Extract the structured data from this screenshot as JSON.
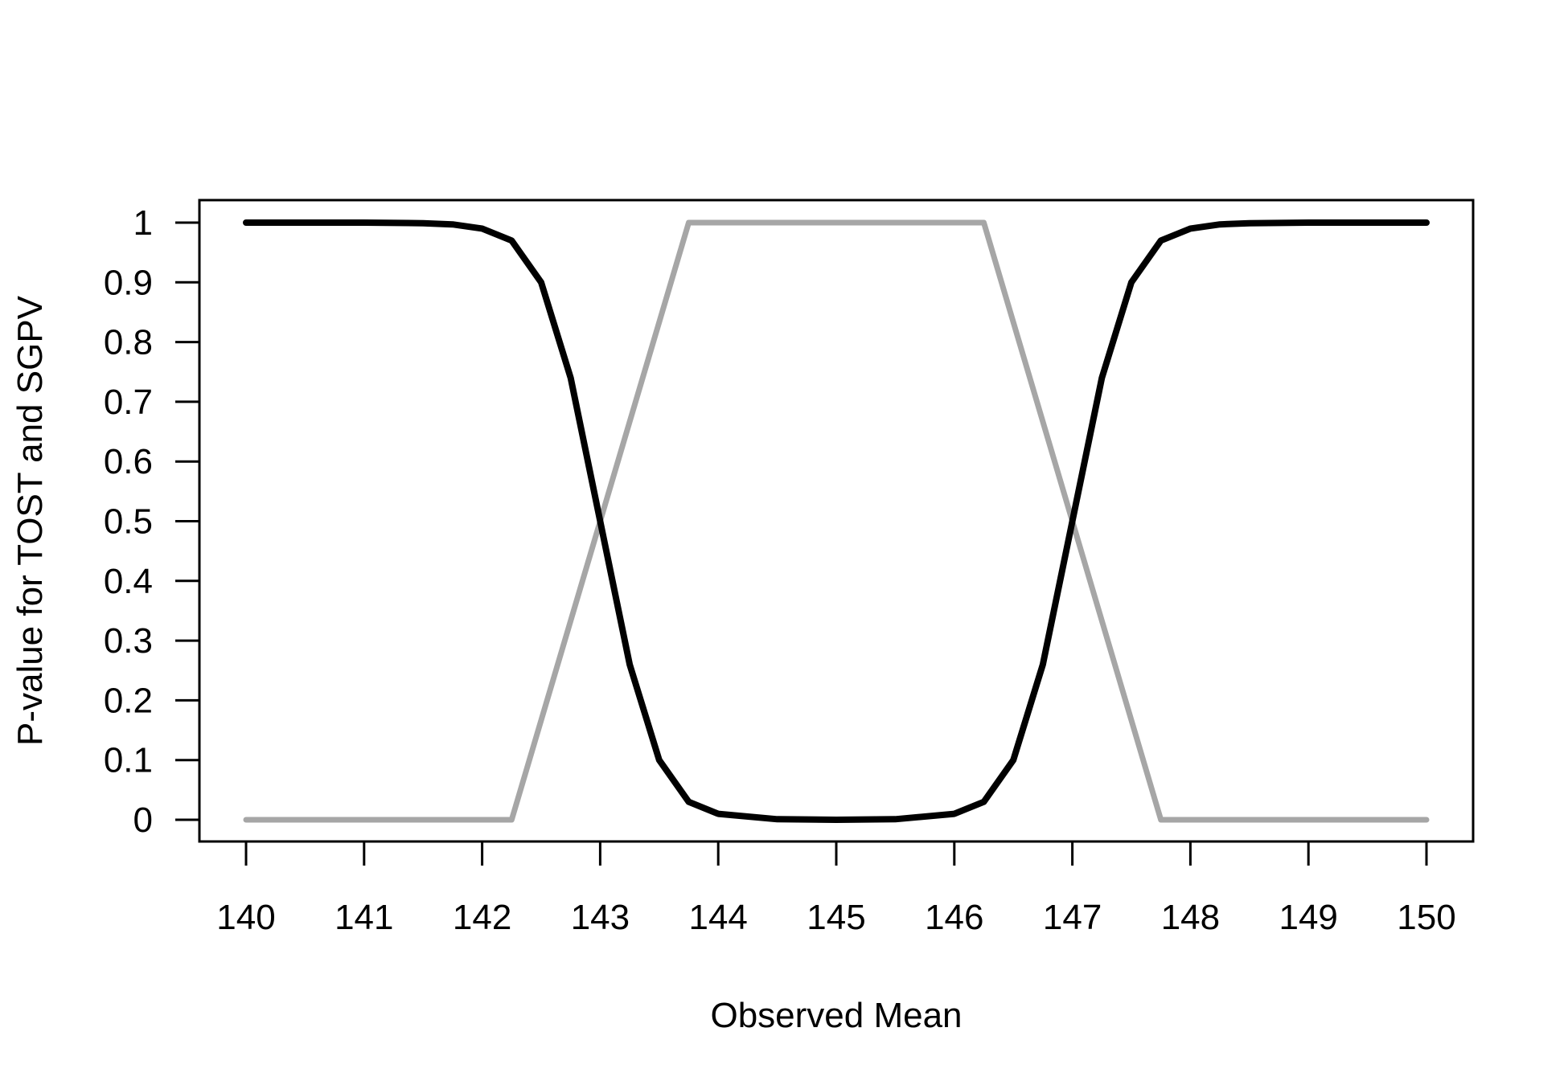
{
  "chart_data": {
    "type": "line",
    "title": "",
    "xlabel": "Observed Mean",
    "ylabel": "P-value for TOST and SGPV",
    "xlim": [
      140,
      150
    ],
    "ylim": [
      0,
      1
    ],
    "x_ticks": [
      "140",
      "141",
      "142",
      "143",
      "144",
      "145",
      "146",
      "147",
      "148",
      "149",
      "150"
    ],
    "y_ticks": [
      "0",
      "0.1",
      "0.2",
      "0.3",
      "0.4",
      "0.5",
      "0.6",
      "0.7",
      "0.8",
      "0.9",
      "1"
    ],
    "grid": false,
    "legend": "none",
    "series": [
      {
        "color": "#000000",
        "x": [
          140,
          141,
          141.5,
          141.75,
          142,
          142.25,
          142.5,
          142.75,
          143,
          143.25,
          143.5,
          143.75,
          144,
          144.5,
          145,
          145.5,
          146,
          146.25,
          146.5,
          146.75,
          147,
          147.25,
          147.5,
          147.75,
          148,
          148.25,
          148.5,
          149,
          150
        ],
        "values": [
          1,
          1,
          0.999,
          0.997,
          0.99,
          0.97,
          0.9,
          0.74,
          0.5,
          0.26,
          0.1,
          0.03,
          0.01,
          0.001,
          0,
          0.001,
          0.01,
          0.03,
          0.1,
          0.26,
          0.5,
          0.74,
          0.9,
          0.97,
          0.99,
          0.997,
          0.999,
          1,
          1
        ]
      },
      {
        "color": "#a6a6a6",
        "x": [
          140,
          142.25,
          143.75,
          146.25,
          147.75,
          150
        ],
        "values": [
          0,
          0,
          1,
          1,
          0,
          0
        ]
      }
    ]
  }
}
